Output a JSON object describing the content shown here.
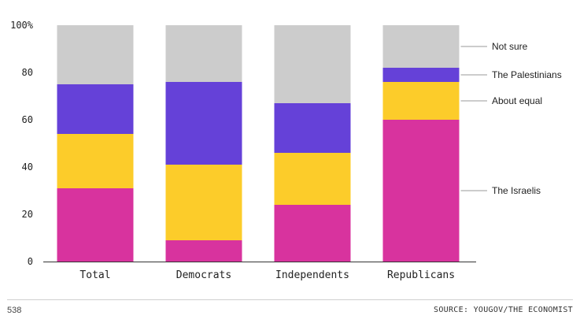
{
  "chart_data": {
    "type": "bar",
    "stacked": true,
    "categories": [
      "Total",
      "Democrats",
      "Independents",
      "Republicans"
    ],
    "series": [
      {
        "name": "The Israelis",
        "color": "#d8339e",
        "values": [
          31,
          9,
          24,
          60
        ]
      },
      {
        "name": "About equal",
        "color": "#fccc2a",
        "values": [
          23,
          32,
          22,
          16
        ]
      },
      {
        "name": "The Palestinians",
        "color": "#6541d8",
        "values": [
          21,
          35,
          21,
          6
        ]
      },
      {
        "name": "Not sure",
        "color": "#cccccc",
        "values": [
          25,
          24,
          33,
          18
        ]
      }
    ],
    "ylim": [
      0,
      100
    ],
    "yticks": [
      "0",
      "20",
      "40",
      "60",
      "80",
      "100%"
    ],
    "ytick_values": [
      0,
      20,
      40,
      60,
      80,
      100
    ],
    "grid": false,
    "legend_position": "right"
  },
  "footer": {
    "left": "538",
    "right": "SOURCE: YOUGOV/THE ECONOMIST"
  }
}
